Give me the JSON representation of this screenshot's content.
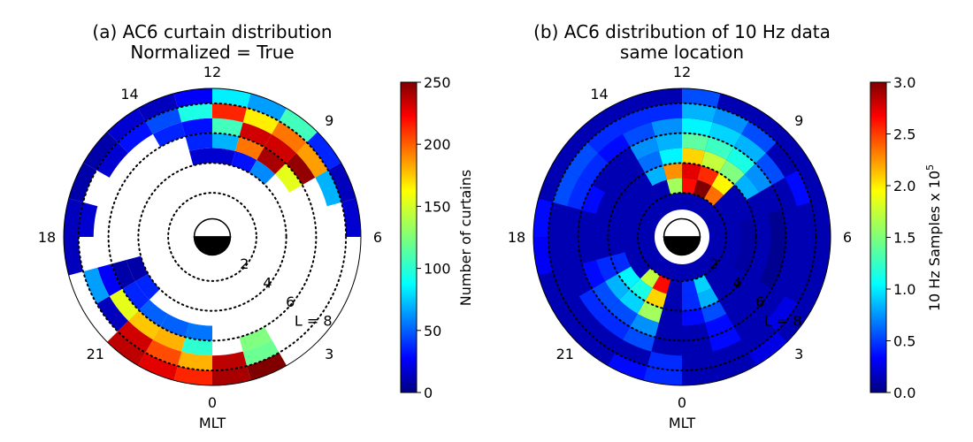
{
  "chart_data": [
    {
      "type": "heatmap",
      "projection": "polar",
      "title_line1": "(a) AC6 curtain distribution",
      "title_line2": "Normalized = True",
      "theta_ticks": [
        "12",
        "9",
        "6",
        "3",
        "0",
        "21",
        "18",
        "14"
      ],
      "theta_label": "MLT",
      "r_ticks": [
        "2",
        "4",
        "6",
        "L = 8"
      ],
      "r_tick_values": [
        2,
        4,
        6,
        8
      ],
      "r_range": [
        1,
        9
      ],
      "colorbar_label": "Number of curtains",
      "colorbar_ticks": [
        "0",
        "50",
        "100",
        "150",
        "200",
        "250"
      ],
      "colorbar_tick_values": [
        0,
        50,
        100,
        150,
        200,
        250
      ],
      "vmin": 0,
      "vmax": 250,
      "colormap": "jet",
      "note_grid": "MLT bins of 1 hour, L bins of 1 L-shell; null = no data (white)",
      "mlt_bins": [
        0,
        1,
        2,
        3,
        4,
        5,
        6,
        7,
        8,
        9,
        10,
        11,
        12,
        13,
        14,
        15,
        16,
        17,
        18,
        19,
        20,
        21,
        22,
        23
      ],
      "l_bins": [
        [
          4,
          5
        ],
        [
          5,
          6
        ],
        [
          6,
          7
        ],
        [
          7,
          8
        ],
        [
          8,
          9
        ]
      ],
      "cells": [
        [
          0,
          7,
          235
        ],
        [
          0,
          8,
          240
        ],
        [
          1,
          6,
          125
        ],
        [
          1,
          7,
          120
        ],
        [
          1,
          8,
          250
        ],
        [
          23,
          5,
          60
        ],
        [
          23,
          6,
          105
        ],
        [
          23,
          7,
          175
        ],
        [
          23,
          8,
          210
        ],
        [
          22,
          5,
          55
        ],
        [
          22,
          6,
          175
        ],
        [
          22,
          7,
          200
        ],
        [
          22,
          8,
          225
        ],
        [
          21,
          5,
          55
        ],
        [
          21,
          6,
          170
        ],
        [
          21,
          7,
          230
        ],
        [
          21,
          8,
          235
        ],
        [
          20,
          4,
          40
        ],
        [
          20,
          5,
          40
        ],
        [
          20,
          6,
          150
        ],
        [
          20,
          7,
          15
        ],
        [
          19,
          4,
          10
        ],
        [
          19,
          5,
          10
        ],
        [
          19,
          6,
          30
        ],
        [
          19,
          7,
          70
        ],
        [
          18,
          8,
          15
        ],
        [
          17,
          8,
          15
        ],
        [
          17,
          7,
          20
        ],
        [
          16,
          8,
          10
        ],
        [
          15,
          8,
          10
        ],
        [
          15,
          7,
          20
        ],
        [
          14,
          7,
          35
        ],
        [
          14,
          8,
          20
        ],
        [
          13,
          6,
          40
        ],
        [
          13,
          7,
          50
        ],
        [
          13,
          8,
          15
        ],
        [
          12,
          4,
          20
        ],
        [
          12,
          5,
          40
        ],
        [
          12,
          6,
          35
        ],
        [
          12,
          7,
          100
        ],
        [
          12,
          8,
          30
        ],
        [
          11,
          4,
          20
        ],
        [
          11,
          5,
          75
        ],
        [
          11,
          6,
          110
        ],
        [
          11,
          7,
          210
        ],
        [
          11,
          8,
          90
        ],
        [
          10,
          4,
          35
        ],
        [
          10,
          5,
          190
        ],
        [
          10,
          6,
          230
        ],
        [
          10,
          7,
          160
        ],
        [
          10,
          8,
          70
        ],
        [
          9,
          4,
          65
        ],
        [
          9,
          5,
          240
        ],
        [
          9,
          6,
          230
        ],
        [
          9,
          7,
          190
        ],
        [
          9,
          8,
          110
        ],
        [
          8,
          5,
          150
        ],
        [
          8,
          6,
          245
        ],
        [
          8,
          7,
          180
        ],
        [
          8,
          8,
          40
        ],
        [
          7,
          7,
          75
        ],
        [
          7,
          8,
          15
        ],
        [
          6,
          8,
          20
        ]
      ]
    },
    {
      "type": "heatmap",
      "projection": "polar",
      "title_line1": "(b) AC6 distribution of 10 Hz data",
      "title_line2": "same location",
      "theta_ticks": [
        "12",
        "9",
        "6",
        "3",
        "0",
        "21",
        "18",
        "14"
      ],
      "theta_label": "MLT",
      "r_ticks": [
        "2",
        "4",
        "6",
        "L = 8"
      ],
      "r_tick_values": [
        2,
        4,
        6,
        8
      ],
      "r_range": [
        1,
        9
      ],
      "colorbar_label": "10 Hz Samples x 10",
      "colorbar_label_exponent": "5",
      "colorbar_ticks": [
        "0.0",
        "0.5",
        "1.0",
        "1.5",
        "2.0",
        "2.5",
        "3.0"
      ],
      "colorbar_tick_values": [
        0.0,
        0.5,
        1.0,
        1.5,
        2.0,
        2.5,
        3.0
      ],
      "vmin": 0.0,
      "vmax": 3.0,
      "colormap": "jet",
      "background_value": 0.15,
      "cells": [
        [
          12,
          2,
          1.6
        ],
        [
          12,
          3,
          2.2
        ],
        [
          12,
          4,
          1.1
        ],
        [
          12,
          5,
          0.9
        ],
        [
          12,
          6,
          0.8
        ],
        [
          12,
          7,
          0.5
        ],
        [
          11,
          2,
          2.6
        ],
        [
          11,
          3,
          2.7
        ],
        [
          11,
          4,
          2.0
        ],
        [
          11,
          5,
          1.4
        ],
        [
          11,
          6,
          1.1
        ],
        [
          11,
          7,
          0.9
        ],
        [
          11,
          8,
          0.6
        ],
        [
          10,
          2,
          3.0
        ],
        [
          10,
          3,
          2.5
        ],
        [
          10,
          4,
          1.7
        ],
        [
          10,
          5,
          1.3
        ],
        [
          10,
          6,
          1.0
        ],
        [
          10,
          7,
          0.8
        ],
        [
          9,
          2,
          2.3
        ],
        [
          9,
          3,
          1.9
        ],
        [
          9,
          4,
          1.5
        ],
        [
          9,
          5,
          1.2
        ],
        [
          9,
          6,
          0.9
        ],
        [
          9,
          7,
          0.6
        ],
        [
          13,
          3,
          0.9
        ],
        [
          13,
          4,
          0.7
        ],
        [
          13,
          5,
          0.8
        ],
        [
          13,
          6,
          0.6
        ],
        [
          13,
          7,
          0.5
        ],
        [
          8,
          4,
          0.9
        ],
        [
          8,
          5,
          0.8
        ],
        [
          8,
          6,
          0.6
        ],
        [
          7,
          7,
          0.4
        ],
        [
          1,
          2,
          1.0
        ],
        [
          1,
          3,
          0.9
        ],
        [
          1,
          4,
          0.6
        ],
        [
          1,
          5,
          0.4
        ],
        [
          1,
          6,
          0.4
        ],
        [
          0,
          2,
          0.5
        ],
        [
          0,
          3,
          0.5
        ],
        [
          0,
          4,
          0.4
        ],
        [
          22,
          2,
          2.6
        ],
        [
          22,
          3,
          2.0
        ],
        [
          22,
          4,
          1.6
        ],
        [
          22,
          5,
          0.8
        ],
        [
          22,
          6,
          0.6
        ],
        [
          21,
          2,
          1.7
        ],
        [
          21,
          3,
          1.2
        ],
        [
          21,
          4,
          1.0
        ],
        [
          21,
          5,
          0.6
        ],
        [
          21,
          6,
          0.5
        ],
        [
          20,
          3,
          1.1
        ],
        [
          20,
          4,
          0.9
        ],
        [
          20,
          5,
          0.6
        ],
        [
          20,
          6,
          0.5
        ],
        [
          19,
          3,
          0.5
        ],
        [
          19,
          4,
          0.5
        ],
        [
          19,
          5,
          0.4
        ],
        [
          16,
          5,
          0.4
        ],
        [
          16,
          6,
          0.5
        ],
        [
          16,
          7,
          0.6
        ],
        [
          15,
          6,
          0.5
        ],
        [
          15,
          7,
          0.6
        ],
        [
          14,
          6,
          0.4
        ],
        [
          14,
          7,
          0.5
        ],
        [
          17,
          8,
          0.4
        ],
        [
          18,
          8,
          0.35
        ],
        [
          23,
          7,
          0.5
        ],
        [
          23,
          8,
          0.5
        ],
        [
          22,
          8,
          0.4
        ],
        [
          2,
          8,
          0.3
        ],
        [
          3,
          7,
          0.3
        ],
        [
          4,
          3,
          0.1
        ],
        [
          5,
          3,
          0.1
        ],
        [
          6,
          3,
          0.1
        ],
        [
          4,
          5,
          0.05
        ],
        [
          5,
          5,
          0.05
        ],
        [
          6,
          5,
          0.05
        ]
      ]
    }
  ]
}
